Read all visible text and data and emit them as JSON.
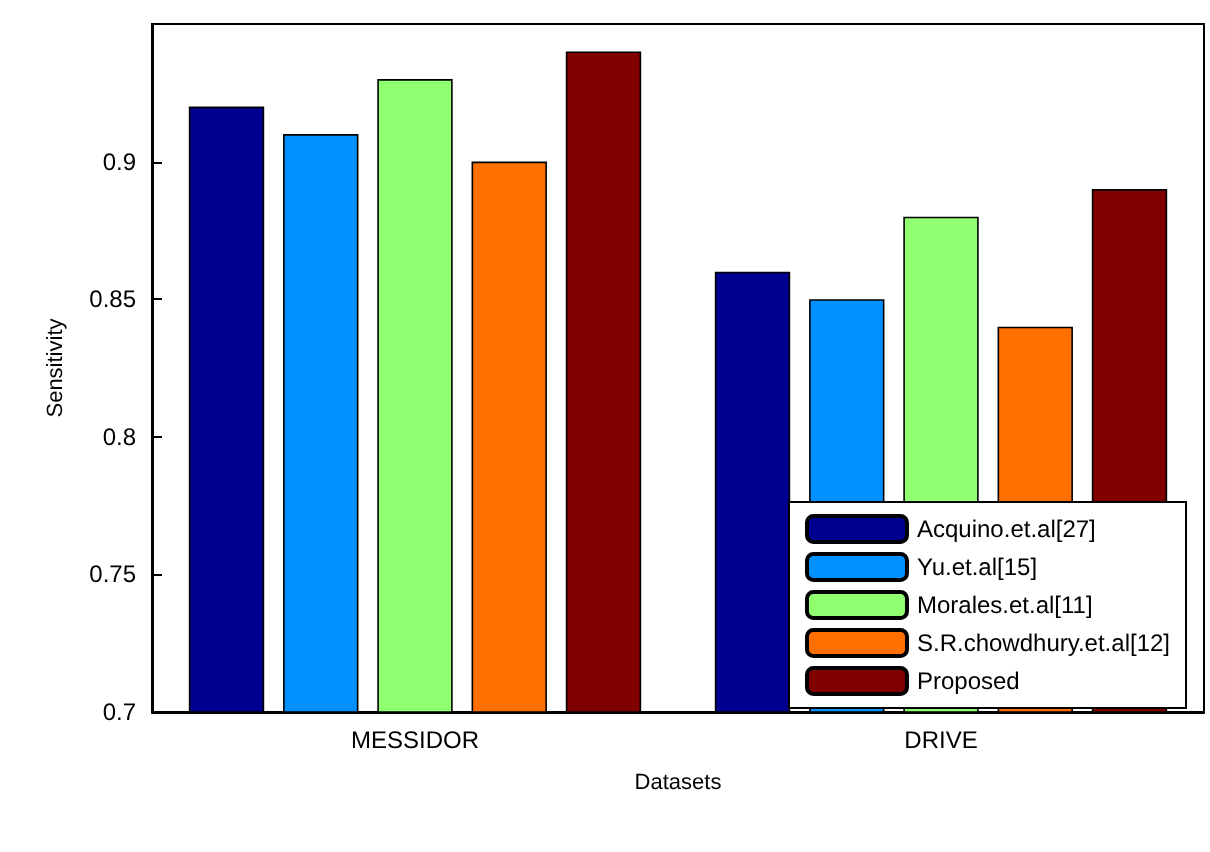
{
  "chart_data": {
    "type": "bar",
    "xlabel": "Datasets",
    "ylabel": "Sensitivity",
    "categories": [
      "MESSIDOR",
      "DRIVE"
    ],
    "series": [
      {
        "name": "Acquino.et.al[27]",
        "color": "#000090",
        "values": [
          0.92,
          0.86
        ]
      },
      {
        "name": "Yu.et.al[15]",
        "color": "#0090ff",
        "values": [
          0.91,
          0.85
        ]
      },
      {
        "name": "Morales.et.al[11]",
        "color": "#90ff70",
        "values": [
          0.93,
          0.88
        ]
      },
      {
        "name": "S.R.chowdhury.et.al[12]",
        "color": "#ff7000",
        "values": [
          0.9,
          0.84
        ]
      },
      {
        "name": "Proposed",
        "color": "#800000",
        "values": [
          0.94,
          0.89
        ]
      }
    ],
    "ylim": [
      0.7,
      0.95
    ],
    "yticks": [
      0.7,
      0.75,
      0.8,
      0.85,
      0.9
    ],
    "grid": false,
    "legend": "bottom right"
  }
}
